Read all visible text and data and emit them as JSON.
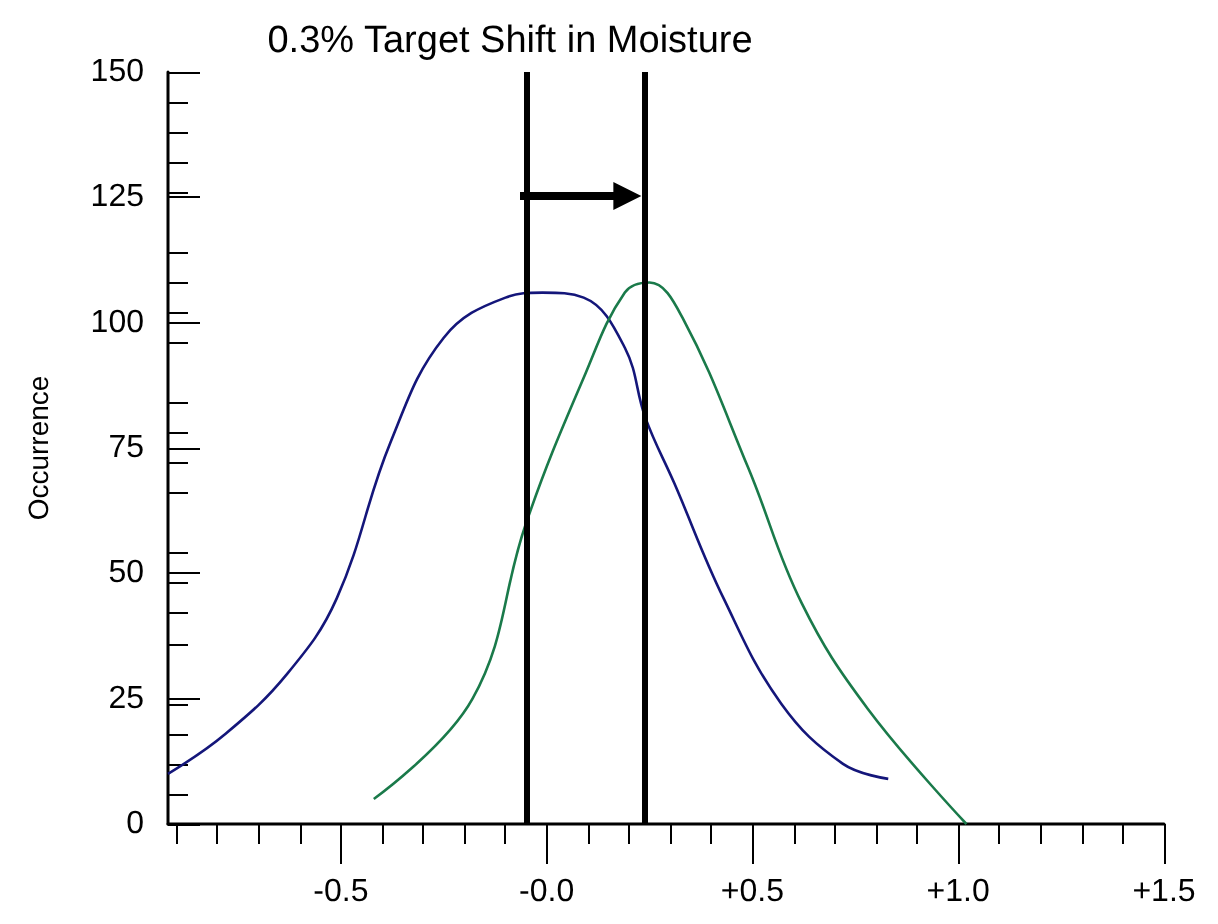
{
  "chart_data": {
    "type": "line",
    "title": "0.3% Target Shift in Moisture",
    "ylabel": "Occurrence",
    "xlim": [
      -0.92,
      1.5
    ],
    "xticks": [
      {
        "value": -0.5,
        "label": "-0.5"
      },
      {
        "value": 0,
        "label": "-0.0"
      },
      {
        "value": 0.5,
        "label": "+0.5"
      },
      {
        "value": 1,
        "label": "+1.0"
      },
      {
        "value": 1.5,
        "label": "+1.5"
      }
    ],
    "ylim": [
      0,
      150
    ],
    "yticks": [
      0,
      25,
      50,
      75,
      100,
      125,
      150
    ],
    "series": [
      {
        "color": "#14167a",
        "x": [
          -0.92,
          -0.78,
          -0.63,
          -0.51,
          -0.38,
          -0.25,
          -0.1,
          -0.01,
          0.09,
          0.19,
          0.24,
          0.31,
          0.43,
          0.57,
          0.72,
          0.83
        ],
        "values": [
          10,
          18,
          30,
          45,
          76,
          97,
          105,
          106,
          105,
          95,
          81,
          68,
          45,
          24,
          12,
          9
        ]
      },
      {
        "color": "#1a7a4a",
        "x": [
          -0.42,
          -0.18,
          -0.05,
          0.09,
          0.19,
          0.25,
          0.33,
          0.49,
          0.62,
          0.78,
          1.02
        ],
        "values": [
          5,
          25,
          60,
          89,
          106,
          108,
          101,
          71,
          44,
          23,
          0
        ]
      }
    ],
    "ref_lines": [
      {
        "axis": "x",
        "value": -0.05,
        "color": "#000000"
      },
      {
        "axis": "x",
        "value": 0.24,
        "color": "#000000"
      }
    ],
    "grid": false,
    "marker": "none",
    "line_style": "solid"
  }
}
